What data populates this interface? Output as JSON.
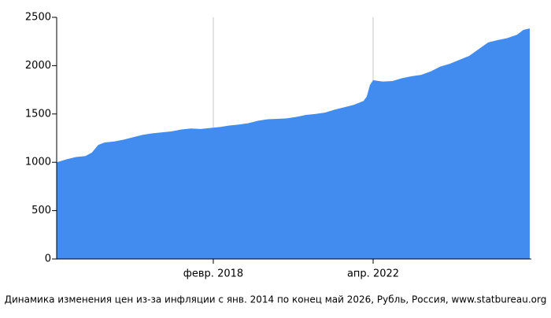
{
  "chart_data": {
    "type": "area",
    "title": "Динамика изменения цен из-за инфляции с янв. 2014 по конец май 2026, Рубль, Россия, www.statbureau.org",
    "x": [
      "2014-01",
      "2014-04",
      "2014-07",
      "2014-10",
      "2014-12",
      "2015-02",
      "2015-04",
      "2015-07",
      "2015-10",
      "2016-01",
      "2016-04",
      "2016-07",
      "2016-10",
      "2017-01",
      "2017-04",
      "2017-07",
      "2017-10",
      "2018-01",
      "2018-04",
      "2018-07",
      "2018-10",
      "2019-01",
      "2019-04",
      "2019-07",
      "2019-10",
      "2020-01",
      "2020-04",
      "2020-07",
      "2020-10",
      "2021-01",
      "2021-04",
      "2021-07",
      "2021-10",
      "2022-01",
      "2022-02",
      "2022-03",
      "2022-04",
      "2022-07",
      "2022-10",
      "2023-01",
      "2023-04",
      "2023-07",
      "2023-10",
      "2024-01",
      "2024-04",
      "2024-07",
      "2024-10",
      "2025-01",
      "2025-04",
      "2025-07",
      "2025-10",
      "2026-01",
      "2026-03",
      "2026-05"
    ],
    "values": [
      1000,
      1030,
      1055,
      1065,
      1100,
      1180,
      1205,
      1215,
      1235,
      1260,
      1285,
      1300,
      1310,
      1320,
      1340,
      1350,
      1345,
      1355,
      1365,
      1380,
      1390,
      1405,
      1430,
      1445,
      1450,
      1455,
      1470,
      1490,
      1500,
      1515,
      1545,
      1570,
      1595,
      1635,
      1680,
      1800,
      1850,
      1835,
      1840,
      1870,
      1890,
      1905,
      1940,
      1990,
      2020,
      2060,
      2100,
      2170,
      2240,
      2265,
      2285,
      2320,
      2370,
      2385
    ],
    "color": "#438cef",
    "xlim": [
      "2014-01",
      "2026-05"
    ],
    "xticks": [
      {
        "value": "2018-02",
        "label": "февр. 2018"
      },
      {
        "value": "2022-04",
        "label": "апр. 2022"
      }
    ],
    "ylim": [
      0,
      2500
    ],
    "yticks": [
      0,
      500,
      1000,
      1500,
      2000,
      2500
    ],
    "grid": true
  }
}
